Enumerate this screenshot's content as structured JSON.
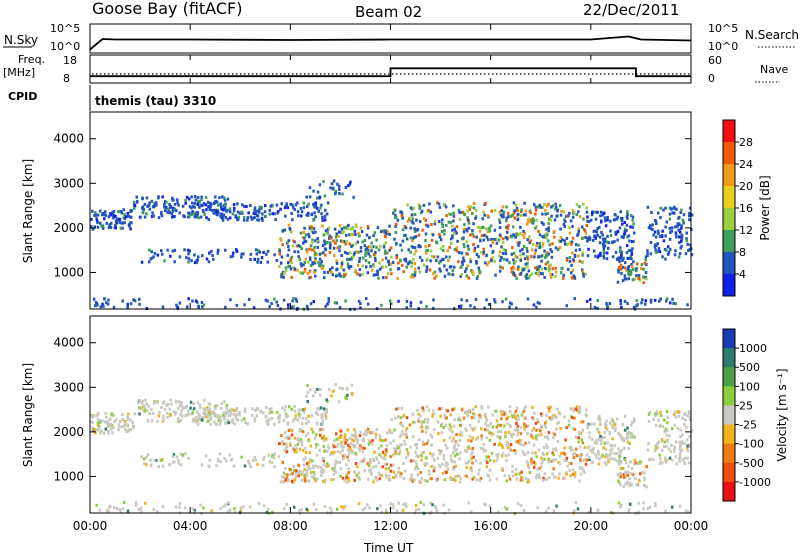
{
  "header": {
    "station": "Goose Bay (fitACF)",
    "beam": "Beam 02",
    "date": "22/Dec/2011"
  },
  "params": {
    "nsky_label": "N.Sky",
    "nsky_ticks": [
      "10^5",
      "10^0"
    ],
    "nsearch_label": "N.Search",
    "nsearch_ticks": [
      "10^5",
      "10^0"
    ],
    "freq_label": "Freq.",
    "freq_unit": "[MHz]",
    "freq_ticks": [
      "18",
      "8"
    ],
    "nave_label": "Nave",
    "nave_ticks": [
      "60",
      "0"
    ],
    "cpid_label": "CPID",
    "cpid_text": "themis (tau) 3310"
  },
  "chart_data": [
    {
      "type": "line",
      "name": "N.Sky",
      "x": [
        0,
        0.5,
        1,
        4,
        8,
        12,
        16,
        20,
        21.5,
        22,
        24
      ],
      "y_log10": [
        0.5,
        2.6,
        2.5,
        2.5,
        2.4,
        2.5,
        2.5,
        2.5,
        3.1,
        2.5,
        2.3
      ]
    },
    {
      "type": "line",
      "name": "Freq.",
      "x": [
        0,
        12.0,
        12.0,
        21.8,
        21.8,
        24
      ],
      "y": [
        11.2,
        11.2,
        15.6,
        15.6,
        11.2,
        11.2
      ],
      "ylim": [
        8,
        18
      ]
    },
    {
      "type": "heatmap",
      "panel": "power",
      "ylabel": "Slant Range [km]",
      "yticks": [
        "4000",
        "3000",
        "2000",
        "1000"
      ],
      "ylim": [
        180,
        4600
      ],
      "colorbar_label": "Power [dB]",
      "colorbar_ticks": [
        "28",
        "24",
        "20",
        "16",
        "12",
        "8",
        "4"
      ],
      "colorbar_colors": [
        "#f01010",
        "#f05a00",
        "#f09a1a",
        "#e6d21e",
        "#9ccf3c",
        "#3c9e5a",
        "#2255bb",
        "#1020e8"
      ]
    },
    {
      "type": "heatmap",
      "panel": "velocity",
      "ylabel": "Slant Range [km]",
      "yticks": [
        "4000",
        "3000",
        "2000",
        "1000"
      ],
      "ylim": [
        180,
        4600
      ],
      "colorbar_label": "Velocity [m s⁻¹]",
      "colorbar_ticks": [
        "1000",
        "500",
        "100",
        "25",
        "-25",
        "-100",
        "-500",
        "-1000"
      ],
      "colorbar_colors": [
        "#1a3ab8",
        "#2e7a6e",
        "#4aa14a",
        "#8ccf3a",
        "#c9c9c2",
        "#f0b21e",
        "#f07a10",
        "#f04a10",
        "#e81010"
      ]
    }
  ],
  "time_axis": {
    "label": "Time UT",
    "ticks": [
      "00:00",
      "04:00",
      "08:00",
      "12:00",
      "16:00",
      "20:00",
      "00:00"
    ]
  }
}
